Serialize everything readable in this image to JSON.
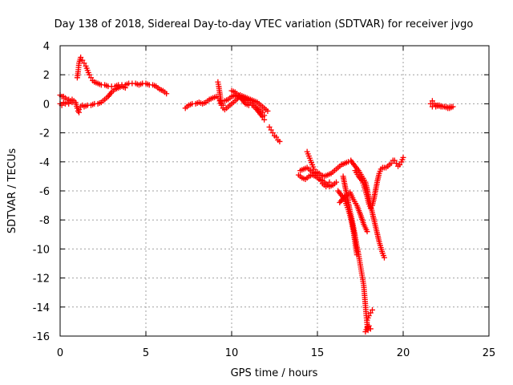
{
  "chart_data": {
    "type": "scatter",
    "title": "Day 138 of 2018, Sidereal Day-to-day VTEC variation (SDTVAR) for receiver jvgo",
    "xlabel": "GPS time / hours",
    "ylabel": "SDTVAR / TECUs",
    "xlim": [
      0,
      25
    ],
    "ylim": [
      -16,
      4
    ],
    "xticks": [
      0,
      5,
      10,
      15,
      20,
      25
    ],
    "yticks": [
      4,
      2,
      0,
      -2,
      -4,
      -6,
      -8,
      -10,
      -12,
      -14,
      -16
    ],
    "grid": true,
    "marker": "+",
    "color": "#ff0000",
    "series": [
      {
        "name": "s1",
        "points": [
          [
            0.0,
            0.6
          ],
          [
            0.1,
            0.5
          ],
          [
            0.2,
            0.5
          ],
          [
            0.3,
            0.4
          ],
          [
            0.4,
            0.3
          ],
          [
            0.5,
            0.3
          ],
          [
            0.6,
            0.2
          ],
          [
            0.7,
            0.3
          ],
          [
            0.8,
            0.2
          ],
          [
            0.9,
            0.1
          ],
          [
            1.0,
            -0.3
          ],
          [
            1.05,
            -0.5
          ],
          [
            1.1,
            -0.6
          ]
        ]
      },
      {
        "name": "s2",
        "points": [
          [
            0.0,
            0.0
          ],
          [
            0.1,
            -0.1
          ],
          [
            0.2,
            0.1
          ],
          [
            0.3,
            0.0
          ],
          [
            0.4,
            0.1
          ],
          [
            0.5,
            0.0
          ],
          [
            0.6,
            0.2
          ],
          [
            0.7,
            0.1
          ]
        ]
      },
      {
        "name": "s3",
        "points": [
          [
            1.1,
            -0.4
          ],
          [
            1.2,
            -0.2
          ],
          [
            1.3,
            -0.1
          ],
          [
            1.4,
            -0.2
          ],
          [
            1.6,
            -0.1
          ],
          [
            1.8,
            -0.1
          ],
          [
            2.0,
            0.0
          ],
          [
            2.2,
            0.0
          ],
          [
            2.4,
            0.1
          ],
          [
            2.6,
            0.3
          ],
          [
            2.8,
            0.5
          ],
          [
            3.0,
            0.8
          ],
          [
            3.2,
            1.0
          ],
          [
            3.4,
            1.1
          ],
          [
            3.6,
            1.2
          ],
          [
            3.8,
            1.1
          ]
        ]
      },
      {
        "name": "s4",
        "points": [
          [
            1.0,
            1.8
          ],
          [
            1.05,
            2.2
          ],
          [
            1.1,
            2.8
          ],
          [
            1.2,
            3.2
          ],
          [
            1.3,
            3.0
          ],
          [
            1.4,
            2.8
          ],
          [
            1.5,
            2.6
          ],
          [
            1.6,
            2.3
          ],
          [
            1.7,
            2.0
          ],
          [
            1.8,
            1.8
          ],
          [
            1.9,
            1.6
          ],
          [
            2.0,
            1.5
          ],
          [
            2.2,
            1.4
          ],
          [
            2.4,
            1.3
          ],
          [
            2.6,
            1.3
          ],
          [
            2.8,
            1.2
          ],
          [
            3.0,
            1.2
          ],
          [
            3.2,
            1.2
          ],
          [
            3.4,
            1.3
          ],
          [
            3.6,
            1.3
          ],
          [
            3.8,
            1.3
          ],
          [
            4.0,
            1.4
          ],
          [
            4.2,
            1.4
          ],
          [
            4.4,
            1.4
          ],
          [
            4.6,
            1.3
          ],
          [
            4.8,
            1.4
          ],
          [
            5.0,
            1.4
          ],
          [
            5.2,
            1.3
          ],
          [
            5.4,
            1.3
          ],
          [
            5.6,
            1.2
          ],
          [
            5.8,
            1.0
          ],
          [
            6.0,
            0.9
          ],
          [
            6.2,
            0.7
          ]
        ]
      },
      {
        "name": "s5",
        "points": [
          [
            7.3,
            -0.3
          ],
          [
            7.5,
            -0.1
          ],
          [
            7.7,
            0.0
          ],
          [
            7.9,
            0.0
          ],
          [
            8.1,
            0.1
          ],
          [
            8.3,
            0.0
          ],
          [
            8.5,
            0.1
          ],
          [
            8.7,
            0.3
          ],
          [
            8.9,
            0.4
          ],
          [
            9.1,
            0.5
          ],
          [
            9.2,
            0.4
          ],
          [
            9.3,
            0.2
          ],
          [
            9.4,
            -0.1
          ],
          [
            9.5,
            -0.3
          ],
          [
            9.6,
            -0.4
          ]
        ]
      },
      {
        "name": "s6",
        "points": [
          [
            9.2,
            1.5
          ],
          [
            9.25,
            1.2
          ],
          [
            9.3,
            0.8
          ],
          [
            9.35,
            0.4
          ],
          [
            9.4,
            0.0
          ],
          [
            9.5,
            -0.1
          ]
        ]
      },
      {
        "name": "s7",
        "points": [
          [
            9.6,
            0.2
          ],
          [
            9.8,
            0.3
          ],
          [
            10.0,
            0.5
          ],
          [
            10.2,
            0.6
          ],
          [
            10.4,
            0.5
          ],
          [
            10.6,
            0.4
          ],
          [
            10.8,
            0.3
          ],
          [
            11.0,
            0.2
          ],
          [
            11.2,
            0.0
          ],
          [
            11.4,
            -0.2
          ],
          [
            11.6,
            -0.4
          ],
          [
            11.8,
            -0.6
          ],
          [
            11.9,
            -0.8
          ]
        ]
      },
      {
        "name": "s8",
        "points": [
          [
            9.7,
            -0.3
          ],
          [
            9.9,
            -0.1
          ],
          [
            10.1,
            0.1
          ],
          [
            10.3,
            0.3
          ],
          [
            10.5,
            0.6
          ],
          [
            10.7,
            0.5
          ],
          [
            10.9,
            0.4
          ],
          [
            11.1,
            0.3
          ],
          [
            11.3,
            0.2
          ],
          [
            11.5,
            0.1
          ],
          [
            11.7,
            -0.1
          ],
          [
            11.9,
            -0.3
          ],
          [
            12.1,
            -0.5
          ]
        ]
      },
      {
        "name": "s9",
        "points": [
          [
            10.0,
            0.9
          ],
          [
            10.2,
            0.8
          ],
          [
            10.4,
            0.6
          ],
          [
            10.6,
            0.3
          ],
          [
            10.8,
            0.0
          ],
          [
            11.0,
            -0.1
          ],
          [
            11.2,
            -0.1
          ],
          [
            11.4,
            -0.3
          ],
          [
            11.6,
            -0.6
          ],
          [
            11.8,
            -0.9
          ],
          [
            11.9,
            -1.1
          ]
        ]
      },
      {
        "name": "s10",
        "points": [
          [
            12.2,
            -1.6
          ],
          [
            12.3,
            -1.8
          ],
          [
            12.4,
            -2.0
          ],
          [
            12.5,
            -2.2
          ],
          [
            12.6,
            -2.3
          ],
          [
            12.7,
            -2.5
          ],
          [
            12.8,
            -2.6
          ]
        ]
      },
      {
        "name": "s11",
        "points": [
          [
            14.4,
            -3.3
          ],
          [
            14.5,
            -3.6
          ],
          [
            14.6,
            -3.9
          ],
          [
            14.7,
            -4.2
          ],
          [
            14.8,
            -4.5
          ],
          [
            14.9,
            -4.7
          ],
          [
            15.0,
            -4.9
          ],
          [
            15.1,
            -5.1
          ],
          [
            15.2,
            -5.3
          ],
          [
            15.3,
            -5.5
          ],
          [
            15.4,
            -5.6
          ],
          [
            15.5,
            -5.7
          ],
          [
            15.6,
            -5.6
          ],
          [
            15.7,
            -5.4
          ]
        ]
      },
      {
        "name": "s12",
        "points": [
          [
            14.0,
            -4.6
          ],
          [
            14.2,
            -4.5
          ],
          [
            14.4,
            -4.4
          ],
          [
            14.6,
            -4.6
          ],
          [
            14.8,
            -4.8
          ],
          [
            15.0,
            -4.7
          ],
          [
            15.2,
            -4.9
          ],
          [
            15.4,
            -5.0
          ],
          [
            15.6,
            -4.9
          ],
          [
            15.8,
            -4.8
          ],
          [
            16.0,
            -4.6
          ],
          [
            16.2,
            -4.4
          ],
          [
            16.4,
            -4.2
          ],
          [
            16.6,
            -4.1
          ],
          [
            16.8,
            -4.0
          ],
          [
            16.95,
            -3.9
          ]
        ]
      },
      {
        "name": "s13",
        "points": [
          [
            13.9,
            -4.9
          ],
          [
            14.1,
            -5.1
          ],
          [
            14.3,
            -5.2
          ],
          [
            14.5,
            -5.0
          ],
          [
            14.7,
            -4.9
          ],
          [
            14.9,
            -5.0
          ],
          [
            15.1,
            -5.2
          ],
          [
            15.3,
            -5.3
          ],
          [
            15.5,
            -5.5
          ],
          [
            15.7,
            -5.7
          ],
          [
            15.9,
            -5.6
          ],
          [
            16.1,
            -5.4
          ]
        ]
      },
      {
        "name": "s14",
        "points": [
          [
            17.0,
            -4.0
          ],
          [
            17.2,
            -4.3
          ],
          [
            17.4,
            -4.6
          ],
          [
            17.6,
            -5.0
          ],
          [
            17.8,
            -5.4
          ],
          [
            17.9,
            -5.9
          ],
          [
            18.0,
            -6.5
          ],
          [
            18.1,
            -7.0
          ],
          [
            18.2,
            -7.5
          ],
          [
            18.3,
            -8.0
          ],
          [
            18.4,
            -8.5
          ],
          [
            18.5,
            -9.0
          ],
          [
            18.6,
            -9.5
          ],
          [
            18.7,
            -9.9
          ],
          [
            18.8,
            -10.3
          ],
          [
            18.9,
            -10.6
          ]
        ]
      },
      {
        "name": "s15",
        "points": [
          [
            16.5,
            -5.0
          ],
          [
            16.6,
            -5.6
          ],
          [
            16.7,
            -6.2
          ],
          [
            16.8,
            -6.8
          ],
          [
            16.9,
            -7.4
          ],
          [
            17.0,
            -7.9
          ],
          [
            17.1,
            -8.5
          ],
          [
            17.2,
            -9.1
          ],
          [
            17.3,
            -9.8
          ],
          [
            17.4,
            -10.4
          ],
          [
            17.5,
            -11.1
          ],
          [
            17.6,
            -11.8
          ],
          [
            17.7,
            -12.5
          ],
          [
            17.75,
            -13.2
          ],
          [
            17.8,
            -13.9
          ],
          [
            17.85,
            -14.6
          ],
          [
            17.9,
            -15.2
          ],
          [
            17.95,
            -15.6
          ]
        ]
      },
      {
        "name": "s16",
        "points": [
          [
            17.8,
            -15.7
          ],
          [
            17.9,
            -15.4
          ],
          [
            18.0,
            -15.3
          ],
          [
            18.1,
            -15.5
          ]
        ]
      },
      {
        "name": "s17",
        "points": [
          [
            17.9,
            -14.9
          ],
          [
            18.0,
            -14.6
          ],
          [
            18.1,
            -14.4
          ],
          [
            18.2,
            -14.2
          ]
        ]
      },
      {
        "name": "s18",
        "points": [
          [
            16.2,
            -6.0
          ],
          [
            16.4,
            -6.3
          ],
          [
            16.6,
            -6.6
          ],
          [
            16.7,
            -7.0
          ],
          [
            16.8,
            -7.3
          ],
          [
            16.9,
            -7.7
          ],
          [
            17.0,
            -8.2
          ],
          [
            17.1,
            -8.8
          ],
          [
            17.2,
            -9.6
          ],
          [
            17.3,
            -10.4
          ]
        ]
      },
      {
        "name": "s19",
        "points": [
          [
            16.3,
            -6.8
          ],
          [
            16.5,
            -6.5
          ],
          [
            16.7,
            -6.3
          ],
          [
            16.9,
            -6.1
          ],
          [
            17.1,
            -6.6
          ],
          [
            17.3,
            -7.0
          ],
          [
            17.5,
            -7.6
          ],
          [
            17.7,
            -8.3
          ],
          [
            17.9,
            -8.8
          ]
        ]
      },
      {
        "name": "s20",
        "points": [
          [
            17.2,
            -4.6
          ],
          [
            17.4,
            -5.0
          ],
          [
            17.6,
            -5.3
          ],
          [
            17.7,
            -5.6
          ],
          [
            17.8,
            -6.0
          ],
          [
            17.9,
            -6.4
          ],
          [
            18.0,
            -6.9
          ],
          [
            18.1,
            -7.2
          ],
          [
            18.2,
            -7.0
          ],
          [
            18.3,
            -6.5
          ],
          [
            18.4,
            -5.9
          ],
          [
            18.5,
            -5.3
          ],
          [
            18.6,
            -4.8
          ],
          [
            18.7,
            -4.5
          ],
          [
            18.8,
            -4.4
          ],
          [
            18.9,
            -4.4
          ],
          [
            19.0,
            -4.4
          ],
          [
            19.1,
            -4.3
          ],
          [
            19.2,
            -4.2
          ],
          [
            19.3,
            -4.1
          ],
          [
            19.4,
            -3.9
          ],
          [
            19.5,
            -3.9
          ],
          [
            19.6,
            -4.1
          ],
          [
            19.7,
            -4.3
          ],
          [
            19.8,
            -4.2
          ],
          [
            19.9,
            -4.0
          ],
          [
            20.0,
            -3.7
          ]
        ]
      },
      {
        "name": "s21",
        "points": [
          [
            21.6,
            0.0
          ],
          [
            21.7,
            0.2
          ],
          [
            21.8,
            0.0
          ],
          [
            21.9,
            -0.1
          ],
          [
            22.0,
            -0.1
          ],
          [
            22.2,
            -0.2
          ],
          [
            22.4,
            -0.2
          ],
          [
            22.6,
            -0.3
          ],
          [
            22.8,
            -0.2
          ]
        ]
      },
      {
        "name": "s22",
        "points": [
          [
            21.7,
            -0.2
          ],
          [
            21.9,
            -0.2
          ],
          [
            22.1,
            -0.1
          ],
          [
            22.3,
            -0.2
          ],
          [
            22.5,
            -0.2
          ],
          [
            22.7,
            -0.3
          ],
          [
            22.9,
            -0.2
          ]
        ]
      }
    ]
  }
}
